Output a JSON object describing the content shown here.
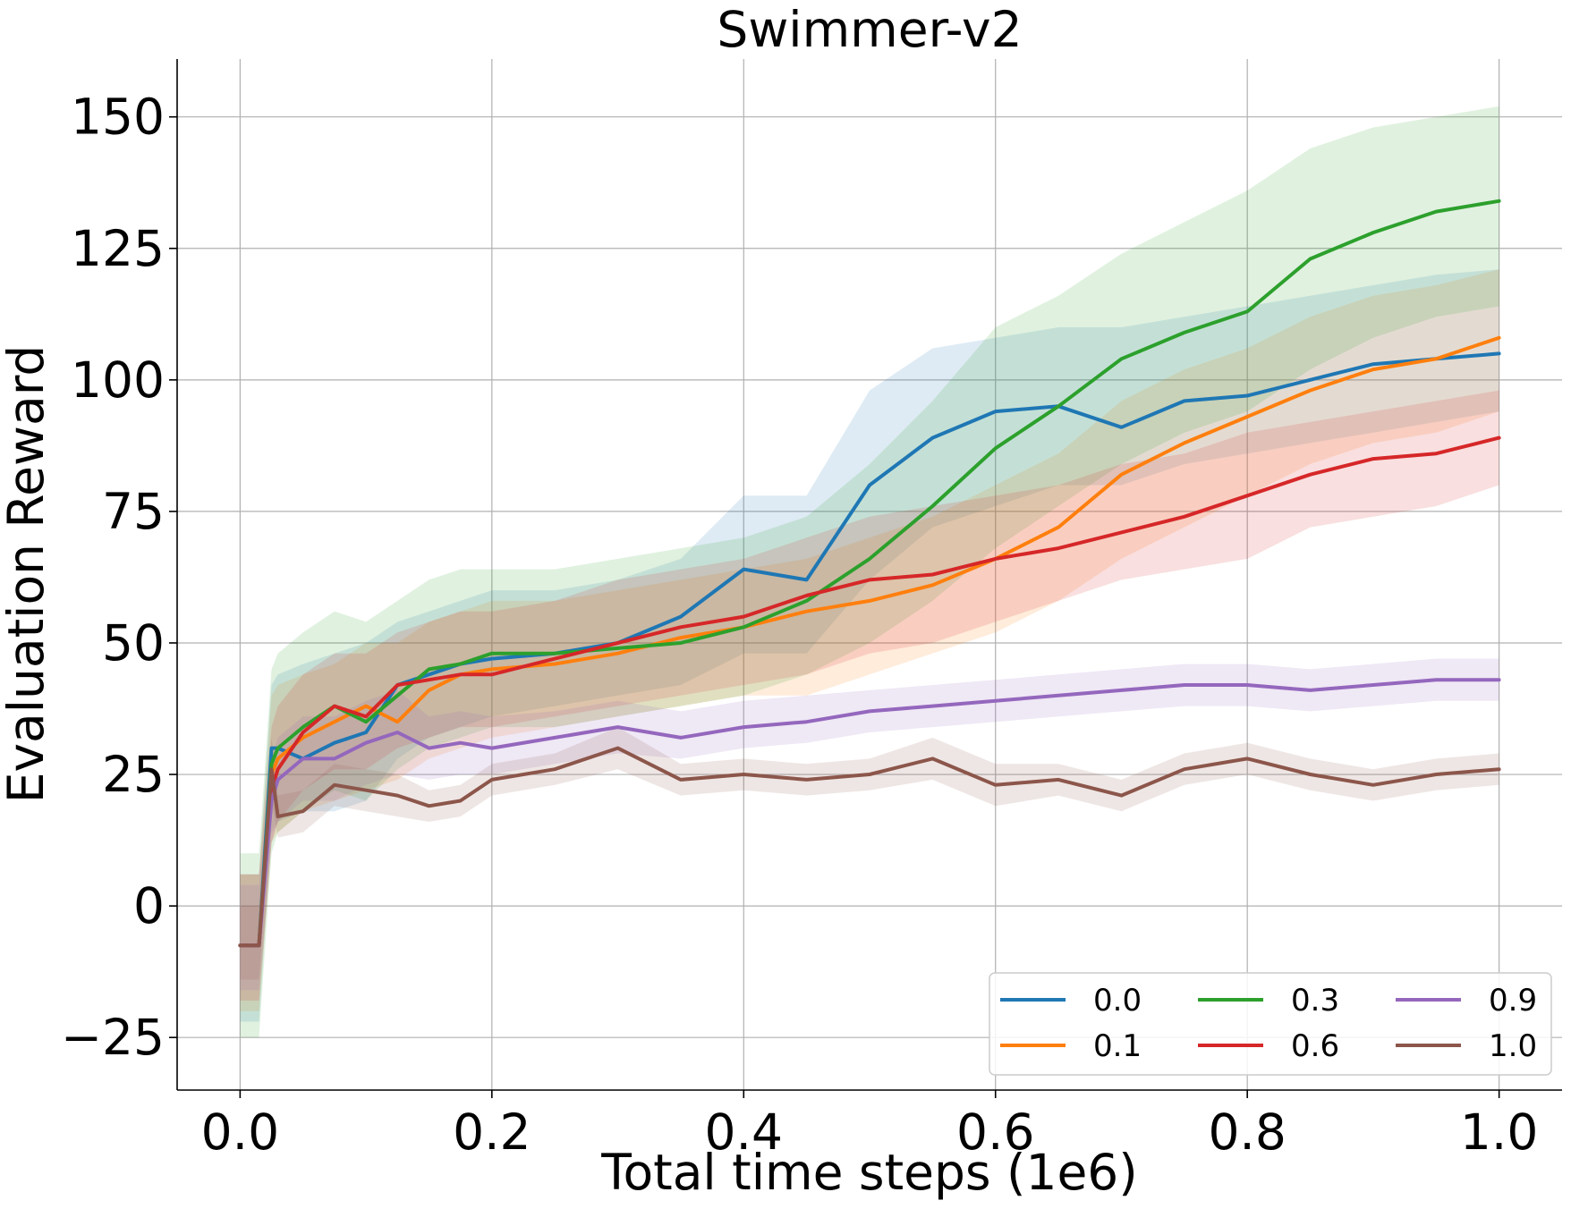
{
  "chart_data": {
    "type": "line",
    "title": "Swimmer-v2",
    "xlabel": "Total time steps (1e6)",
    "ylabel": "Evaluation Reward",
    "xlim": [
      -0.05,
      1.05
    ],
    "ylim": [
      -35,
      161
    ],
    "xticks": [
      0.0,
      0.2,
      0.4,
      0.6,
      0.8,
      1.0
    ],
    "xtick_labels": [
      "0.0",
      "0.2",
      "0.4",
      "0.6",
      "0.8",
      "1.0"
    ],
    "yticks": [
      -25,
      0,
      25,
      50,
      75,
      100,
      125,
      150
    ],
    "ytick_labels": [
      "−25",
      "0",
      "25",
      "50",
      "75",
      "100",
      "125",
      "150"
    ],
    "grid": true,
    "legend": {
      "position": "lower-right",
      "columns": 3
    },
    "x": [
      0.0,
      0.015,
      0.025,
      0.03,
      0.05,
      0.075,
      0.1,
      0.125,
      0.15,
      0.175,
      0.2,
      0.25,
      0.3,
      0.35,
      0.4,
      0.45,
      0.5,
      0.55,
      0.6,
      0.65,
      0.7,
      0.75,
      0.8,
      0.85,
      0.9,
      0.95,
      1.0
    ],
    "series": [
      {
        "name": "0.0",
        "color": "#1f77b4",
        "values": [
          -7.5,
          -7.5,
          30,
          30,
          28,
          31,
          33,
          42,
          44,
          46,
          47,
          48,
          50,
          55,
          64,
          62,
          80,
          89,
          94,
          95,
          91,
          96,
          97,
          100,
          103,
          104,
          105
        ],
        "lower": [
          -22,
          -22,
          14,
          16,
          18,
          18,
          20,
          28,
          32,
          34,
          36,
          38,
          40,
          42,
          48,
          48,
          62,
          72,
          76,
          80,
          80,
          84,
          86,
          88,
          90,
          92,
          94
        ],
        "upper": [
          6,
          6,
          42,
          44,
          46,
          48,
          50,
          54,
          56,
          58,
          60,
          60,
          62,
          66,
          78,
          78,
          98,
          106,
          108,
          110,
          110,
          112,
          114,
          116,
          118,
          120,
          121
        ]
      },
      {
        "name": "0.1",
        "color": "#ff7f0e",
        "values": [
          -7.5,
          -7.5,
          25,
          28,
          32,
          35,
          38,
          35,
          41,
          44,
          45,
          46,
          48,
          51,
          53,
          56,
          58,
          61,
          66,
          72,
          82,
          88,
          93,
          98,
          102,
          104,
          108
        ],
        "lower": [
          -20,
          -20,
          12,
          14,
          18,
          20,
          22,
          24,
          28,
          30,
          32,
          34,
          36,
          38,
          40,
          40,
          44,
          48,
          52,
          58,
          66,
          72,
          78,
          84,
          88,
          90,
          94
        ],
        "upper": [
          6,
          6,
          40,
          42,
          44,
          46,
          50,
          50,
          54,
          56,
          58,
          58,
          60,
          62,
          64,
          66,
          70,
          74,
          80,
          86,
          96,
          102,
          106,
          112,
          116,
          118,
          121
        ]
      },
      {
        "name": "0.3",
        "color": "#2ca02c",
        "values": [
          -7.5,
          -7.5,
          27,
          30,
          34,
          38,
          35,
          40,
          45,
          46,
          48,
          48,
          49,
          50,
          53,
          58,
          66,
          76,
          87,
          95,
          104,
          109,
          113,
          123,
          128,
          132,
          134
        ],
        "lower": [
          -25,
          -25,
          10,
          14,
          18,
          22,
          20,
          26,
          30,
          32,
          34,
          34,
          36,
          38,
          40,
          44,
          50,
          58,
          68,
          76,
          84,
          90,
          94,
          102,
          108,
          112,
          114
        ],
        "upper": [
          10,
          10,
          45,
          48,
          52,
          56,
          54,
          58,
          62,
          64,
          64,
          64,
          66,
          68,
          70,
          74,
          84,
          96,
          110,
          116,
          124,
          130,
          136,
          144,
          148,
          150,
          152
        ]
      },
      {
        "name": "0.6",
        "color": "#d62728",
        "values": [
          -7.5,
          -7.5,
          22,
          26,
          33,
          38,
          36,
          42,
          43,
          44,
          44,
          47,
          50,
          53,
          55,
          59,
          62,
          63,
          66,
          68,
          71,
          74,
          78,
          82,
          85,
          86,
          89
        ],
        "lower": [
          -18,
          -18,
          12,
          16,
          22,
          26,
          26,
          30,
          32,
          34,
          34,
          36,
          38,
          40,
          42,
          44,
          48,
          50,
          54,
          58,
          62,
          64,
          66,
          72,
          74,
          76,
          80
        ],
        "upper": [
          6,
          6,
          34,
          38,
          44,
          48,
          48,
          52,
          54,
          56,
          56,
          58,
          62,
          64,
          66,
          70,
          74,
          76,
          78,
          80,
          84,
          86,
          90,
          92,
          94,
          96,
          98
        ]
      },
      {
        "name": "0.9",
        "color": "#9467bd",
        "values": [
          -7.5,
          -7.5,
          20,
          24,
          28,
          28,
          31,
          33,
          30,
          31,
          30,
          32,
          34,
          32,
          34,
          35,
          37,
          38,
          39,
          40,
          41,
          42,
          42,
          41,
          42,
          43,
          43
        ],
        "lower": [
          -16,
          -16,
          12,
          16,
          20,
          20,
          23,
          25,
          24,
          25,
          25,
          27,
          29,
          28,
          30,
          31,
          33,
          34,
          35,
          36,
          37,
          38,
          38,
          37,
          38,
          39,
          39
        ],
        "upper": [
          4,
          4,
          28,
          32,
          36,
          36,
          39,
          41,
          36,
          37,
          36,
          37,
          39,
          37,
          39,
          40,
          41,
          42,
          43,
          44,
          45,
          46,
          46,
          45,
          46,
          47,
          47
        ]
      },
      {
        "name": "1.0",
        "color": "#8c564b",
        "values": [
          -7.5,
          -7.5,
          26,
          17,
          18,
          23,
          22,
          21,
          19,
          20,
          24,
          26,
          30,
          24,
          25,
          24,
          25,
          28,
          23,
          24,
          21,
          26,
          28,
          25,
          23,
          25,
          26
        ],
        "lower": [
          -14,
          -14,
          20,
          13,
          14,
          19,
          18,
          17,
          16,
          17,
          21,
          23,
          26,
          21,
          22,
          21,
          22,
          24,
          19,
          21,
          18,
          23,
          25,
          22,
          20,
          22,
          23
        ],
        "upper": [
          0,
          0,
          32,
          21,
          22,
          27,
          26,
          25,
          22,
          23,
          27,
          29,
          34,
          27,
          28,
          27,
          28,
          32,
          27,
          27,
          24,
          29,
          31,
          28,
          26,
          28,
          29
        ]
      }
    ]
  }
}
